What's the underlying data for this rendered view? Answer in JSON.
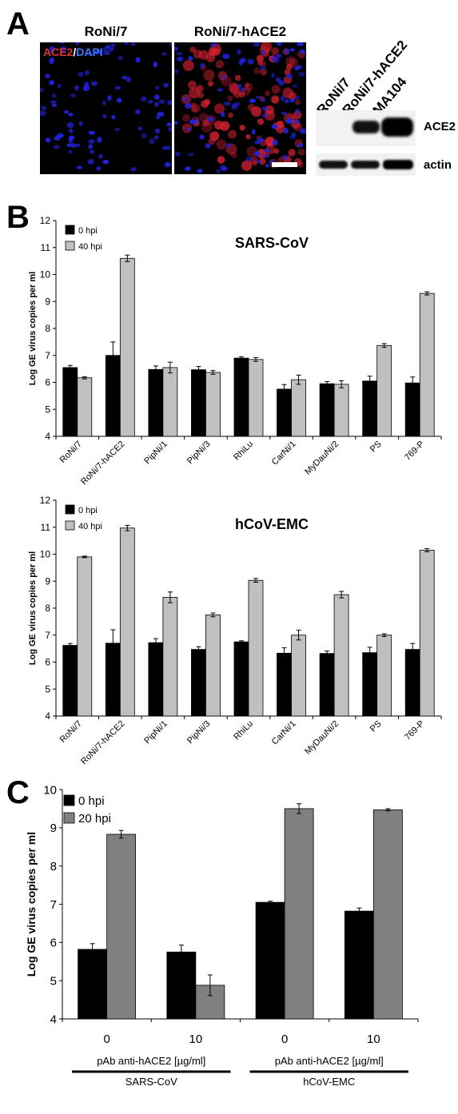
{
  "panel_a": {
    "letter": "A",
    "micro_titles": [
      "RoNi/7",
      "RoNi/7-hACE2"
    ],
    "stain_label_red": "ACE2",
    "stain_label_sep": "/",
    "stain_label_blue": "DAPI",
    "blot_lanes": [
      "RoNi/7",
      "RoNi/7-hACE2",
      "MA104"
    ],
    "blot_bands": [
      "ACE2",
      "actin"
    ],
    "colors": {
      "nuclei": "#2222dd",
      "ace2": "#d02030",
      "background": "#000000"
    }
  },
  "panel_b": {
    "letter": "B"
  },
  "panel_c": {
    "letter": "C"
  },
  "chart_data": [
    {
      "type": "bar",
      "title": "SARS-CoV",
      "ylabel": "Log GE virus copies per ml",
      "ylim": [
        4,
        12
      ],
      "yticks": [
        "4",
        "5",
        "6",
        "7",
        "8",
        "9",
        "10",
        "11",
        "12"
      ],
      "categories": [
        "RoNi/7",
        "RoNi/7-hACE2",
        "PipNi/1",
        "PipNi/3",
        "RhiLu",
        "CarNi/1",
        "MyDauNi/2",
        "PS",
        "769-P"
      ],
      "series": [
        {
          "name": "0 hpi",
          "color": "#000000",
          "values": [
            6.55,
            7.0,
            6.48,
            6.47,
            6.9,
            5.75,
            5.95,
            6.05,
            5.98
          ],
          "errors": [
            0.08,
            0.5,
            0.13,
            0.12,
            0.05,
            0.17,
            0.08,
            0.18,
            0.22
          ]
        },
        {
          "name": "40 hpi",
          "color": "#c0c0c0",
          "values": [
            6.17,
            10.6,
            6.55,
            6.37,
            6.85,
            6.1,
            5.93,
            7.37,
            9.3
          ],
          "errors": [
            0.04,
            0.12,
            0.2,
            0.07,
            0.07,
            0.17,
            0.13,
            0.07,
            0.06
          ]
        }
      ]
    },
    {
      "type": "bar",
      "title": "hCoV-EMC",
      "ylabel": "Log GE virus copies per ml",
      "ylim": [
        4,
        12
      ],
      "yticks": [
        "4",
        "5",
        "6",
        "7",
        "8",
        "9",
        "10",
        "11",
        "12"
      ],
      "categories": [
        "RoNi/7",
        "RoNi/7-hACE2",
        "PipNi/1",
        "PipNi/3",
        "RhiLu",
        "CarNi/1",
        "MyDauNi/2",
        "PS",
        "769-P"
      ],
      "series": [
        {
          "name": "0 hpi",
          "color": "#000000",
          "values": [
            6.62,
            6.7,
            6.72,
            6.47,
            6.75,
            6.33,
            6.32,
            6.35,
            6.47
          ],
          "errors": [
            0.07,
            0.5,
            0.15,
            0.1,
            0.04,
            0.2,
            0.09,
            0.2,
            0.22
          ]
        },
        {
          "name": "40 hpi",
          "color": "#c0c0c0",
          "values": [
            9.9,
            10.97,
            8.4,
            7.75,
            9.03,
            7.0,
            8.5,
            7.0,
            10.15
          ],
          "errors": [
            0.03,
            0.1,
            0.2,
            0.07,
            0.07,
            0.18,
            0.12,
            0.05,
            0.06
          ]
        }
      ]
    },
    {
      "type": "bar",
      "ylabel": "Log GE virus copies per ml",
      "ylim": [
        4,
        10
      ],
      "yticks": [
        "4",
        "5",
        "6",
        "7",
        "8",
        "9",
        "10"
      ],
      "categories": [
        "0",
        "10",
        "0",
        "10"
      ],
      "group_labels": [
        "pAb anti-hACE2 [µg/ml]",
        "pAb anti-hACE2 [µg/ml]"
      ],
      "virus_labels": [
        "SARS-CoV",
        "hCoV-EMC"
      ],
      "series": [
        {
          "name": "0 hpi",
          "color": "#000000",
          "values": [
            5.82,
            5.75,
            7.05,
            6.82
          ],
          "errors": [
            0.15,
            0.18,
            0.03,
            0.08
          ]
        },
        {
          "name": "20 hpi",
          "color": "#808080",
          "values": [
            8.83,
            4.88,
            9.5,
            9.47
          ],
          "errors": [
            0.1,
            0.27,
            0.13,
            0.03
          ]
        }
      ]
    }
  ]
}
